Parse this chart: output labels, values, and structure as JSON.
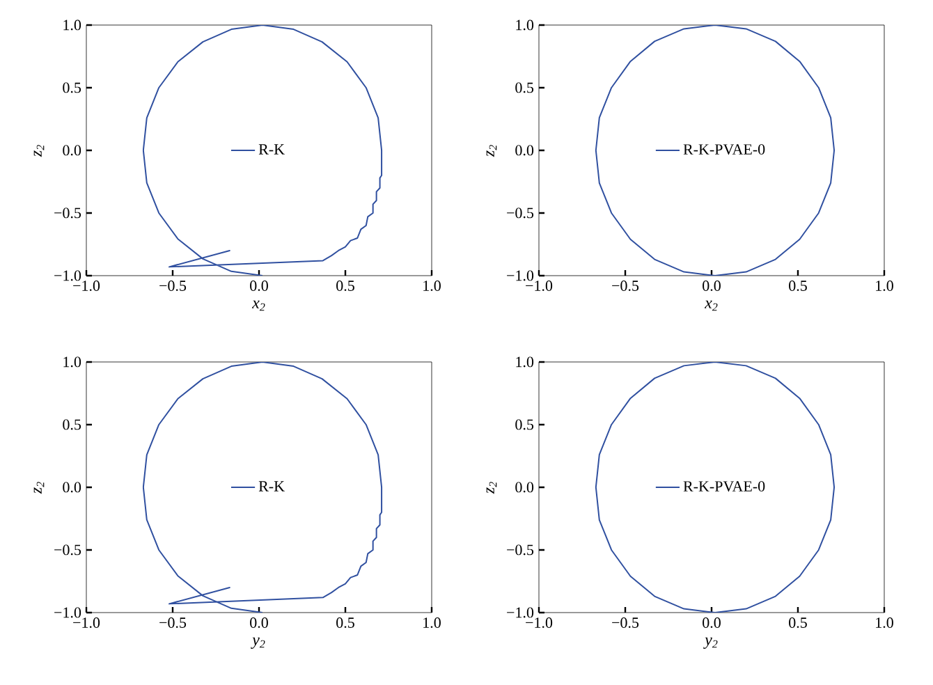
{
  "chart_data": [
    {
      "type": "line",
      "xlabel": "x$_{2}$",
      "ylabel": "z$_{2}$",
      "legend": "center",
      "xlim": [
        -1,
        1
      ],
      "ylim": [
        -1,
        1
      ],
      "xticks": [
        {
          "value": -1,
          "label": "−1.0"
        },
        {
          "value": -0.5,
          "label": "−0.5"
        },
        {
          "value": 0,
          "label": "0.0"
        },
        {
          "value": 0.5,
          "label": "0.5"
        },
        {
          "value": 1,
          "label": "1.0"
        }
      ],
      "yticks": [
        {
          "value": -1,
          "label": "−1.0"
        },
        {
          "value": -0.5,
          "label": "−0.5"
        },
        {
          "value": 0,
          "label": "0.0"
        },
        {
          "value": 0.5,
          "label": "0.5"
        },
        {
          "value": 1,
          "label": "1.0"
        }
      ],
      "series": [
        {
          "name": "R-K",
          "color": "#3050a0",
          "x": [
            0.02,
            -0.16,
            -0.325,
            -0.47,
            -0.58,
            -0.65,
            -0.67,
            -0.65,
            -0.58,
            -0.47,
            -0.325,
            -0.16,
            0.02,
            0.2,
            0.365,
            0.51,
            0.62,
            0.69,
            0.71,
            0.71,
            0.7,
            0.7,
            0.68,
            0.68,
            0.66,
            0.66,
            0.63,
            0.62,
            0.59,
            0.57,
            0.53,
            0.5,
            0.46,
            0.42,
            0.37,
            -0.52,
            -0.17,
            -0.52,
            -0.17
          ],
          "values": [
            -1,
            -0.966,
            -0.866,
            -0.707,
            -0.5,
            -0.259,
            0,
            0.259,
            0.5,
            0.707,
            0.866,
            0.966,
            1,
            0.966,
            0.866,
            0.707,
            0.5,
            0.259,
            0,
            -0.2,
            -0.22,
            -0.3,
            -0.33,
            -0.4,
            -0.43,
            -0.5,
            -0.53,
            -0.6,
            -0.63,
            -0.7,
            -0.72,
            -0.77,
            -0.8,
            -0.84,
            -0.88,
            -0.93,
            -0.8,
            -0.93,
            -0.8
          ]
        }
      ]
    },
    {
      "type": "line",
      "xlabel": "x$_{2}$",
      "ylabel": "z$_{2}$",
      "legend": "center",
      "xlim": [
        -1,
        1
      ],
      "ylim": [
        -1,
        1
      ],
      "xticks": [
        {
          "value": -1,
          "label": "−1.0"
        },
        {
          "value": -0.5,
          "label": "−0.5"
        },
        {
          "value": 0,
          "label": "0.0"
        },
        {
          "value": 0.5,
          "label": "0.5"
        },
        {
          "value": 1,
          "label": "1.0"
        }
      ],
      "yticks": [
        {
          "value": -1,
          "label": "−1.0"
        },
        {
          "value": -0.5,
          "label": "−0.5"
        },
        {
          "value": 0,
          "label": "0.0"
        },
        {
          "value": 0.5,
          "label": "0.5"
        },
        {
          "value": 1,
          "label": "1.0"
        }
      ],
      "series": [
        {
          "name": "R-K-PVAE-0",
          "color": "#3050a0",
          "x": [
            0.02,
            0.2,
            0.37,
            0.51,
            0.62,
            0.69,
            0.71,
            0.69,
            0.62,
            0.51,
            0.37,
            0.2,
            0.02,
            -0.16,
            -0.33,
            -0.47,
            -0.58,
            -0.65,
            -0.67,
            -0.65,
            -0.58,
            -0.47,
            -0.33,
            -0.16,
            0.02,
            0.2
          ],
          "values": [
            1,
            0.97,
            0.87,
            0.71,
            0.5,
            0.26,
            0,
            -0.26,
            -0.5,
            -0.71,
            -0.87,
            -0.97,
            -1,
            -0.97,
            -0.87,
            -0.71,
            -0.5,
            -0.26,
            0,
            0.26,
            0.5,
            0.71,
            0.87,
            0.97,
            1,
            0.97
          ]
        }
      ]
    },
    {
      "type": "line",
      "xlabel": "y$_{2}$",
      "ylabel": "z$_{2}$",
      "legend": "center",
      "xlim": [
        -1,
        1
      ],
      "ylim": [
        -1,
        1
      ],
      "xticks": [
        {
          "value": -1,
          "label": "−1.0"
        },
        {
          "value": -0.5,
          "label": "−0.5"
        },
        {
          "value": 0,
          "label": "0.0"
        },
        {
          "value": 0.5,
          "label": "0.5"
        },
        {
          "value": 1,
          "label": "1.0"
        }
      ],
      "yticks": [
        {
          "value": -1,
          "label": "−1.0"
        },
        {
          "value": -0.5,
          "label": "−0.5"
        },
        {
          "value": 0,
          "label": "0.0"
        },
        {
          "value": 0.5,
          "label": "0.5"
        },
        {
          "value": 1,
          "label": "1.0"
        }
      ],
      "series": [
        {
          "name": "R-K",
          "color": "#3050a0",
          "x": [
            0.02,
            -0.16,
            -0.325,
            -0.47,
            -0.58,
            -0.65,
            -0.67,
            -0.65,
            -0.58,
            -0.47,
            -0.325,
            -0.16,
            0.02,
            0.2,
            0.365,
            0.51,
            0.62,
            0.69,
            0.71,
            0.71,
            0.7,
            0.7,
            0.68,
            0.68,
            0.66,
            0.66,
            0.63,
            0.62,
            0.59,
            0.57,
            0.53,
            0.5,
            0.46,
            0.42,
            0.37,
            -0.52,
            -0.17,
            -0.52,
            -0.17
          ],
          "values": [
            -1,
            -0.966,
            -0.866,
            -0.707,
            -0.5,
            -0.259,
            0,
            0.259,
            0.5,
            0.707,
            0.866,
            0.966,
            1,
            0.966,
            0.866,
            0.707,
            0.5,
            0.259,
            0,
            -0.2,
            -0.22,
            -0.3,
            -0.33,
            -0.4,
            -0.43,
            -0.5,
            -0.53,
            -0.6,
            -0.63,
            -0.7,
            -0.72,
            -0.77,
            -0.8,
            -0.84,
            -0.88,
            -0.93,
            -0.8,
            -0.93,
            -0.8
          ]
        }
      ]
    },
    {
      "type": "line",
      "xlabel": "y$_{2}$",
      "ylabel": "z$_{2}$",
      "legend": "center",
      "xlim": [
        -1,
        1
      ],
      "ylim": [
        -1,
        1
      ],
      "xticks": [
        {
          "value": -1,
          "label": "−1.0"
        },
        {
          "value": -0.5,
          "label": "−0.5"
        },
        {
          "value": 0,
          "label": "0.0"
        },
        {
          "value": 0.5,
          "label": "0.5"
        },
        {
          "value": 1,
          "label": "1.0"
        }
      ],
      "yticks": [
        {
          "value": -1,
          "label": "−1.0"
        },
        {
          "value": -0.5,
          "label": "−0.5"
        },
        {
          "value": 0,
          "label": "0.0"
        },
        {
          "value": 0.5,
          "label": "0.5"
        },
        {
          "value": 1,
          "label": "1.0"
        }
      ],
      "series": [
        {
          "name": "R-K-PVAE-0",
          "color": "#3050a0",
          "x": [
            0.02,
            0.2,
            0.37,
            0.51,
            0.62,
            0.69,
            0.71,
            0.69,
            0.62,
            0.51,
            0.37,
            0.2,
            0.02,
            -0.16,
            -0.33,
            -0.47,
            -0.58,
            -0.65,
            -0.67,
            -0.65,
            -0.58,
            -0.47,
            -0.33,
            -0.16,
            0.02,
            0.2
          ],
          "values": [
            1,
            0.97,
            0.87,
            0.71,
            0.5,
            0.26,
            0,
            -0.26,
            -0.5,
            -0.71,
            -0.87,
            -0.97,
            -1,
            -0.97,
            -0.87,
            -0.71,
            -0.5,
            -0.26,
            0,
            0.26,
            0.5,
            0.71,
            0.87,
            0.97,
            1,
            0.97
          ]
        }
      ]
    }
  ]
}
